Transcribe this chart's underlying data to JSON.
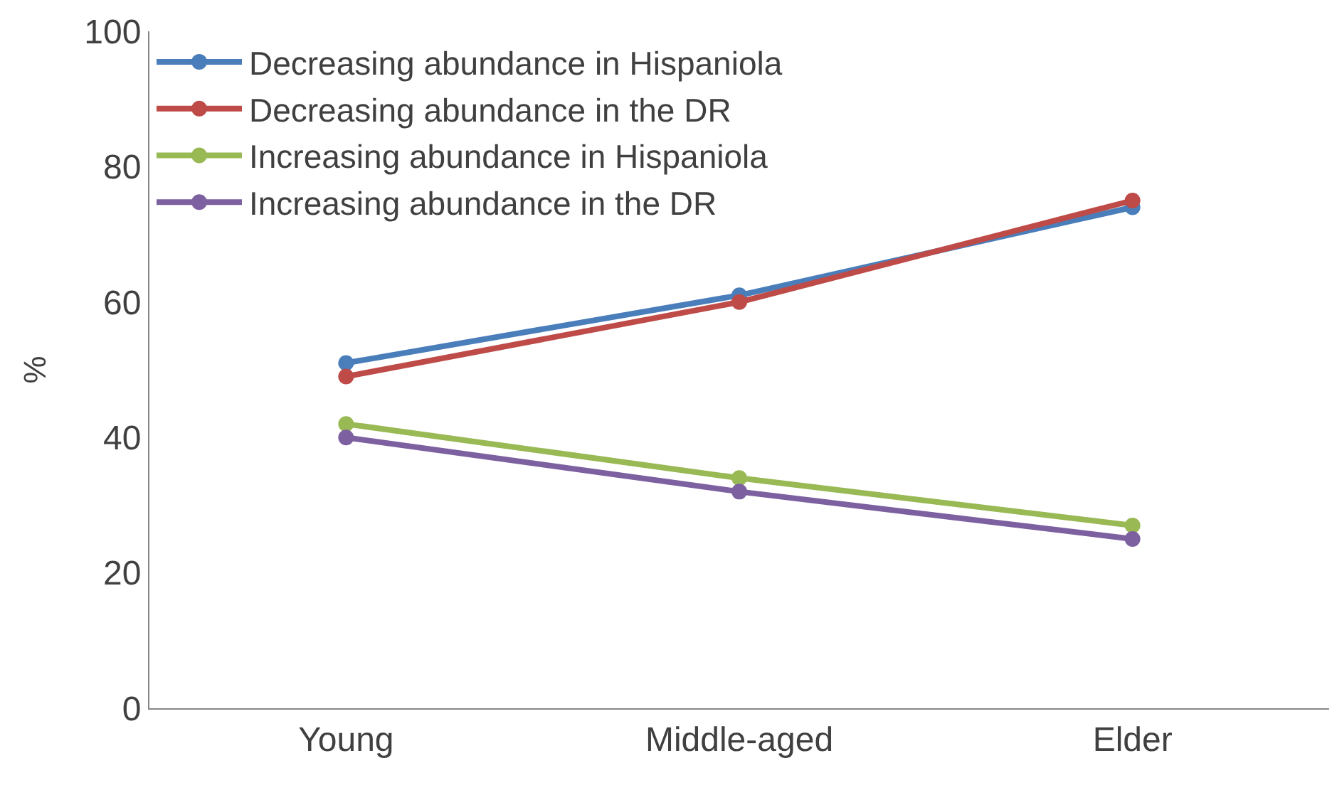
{
  "chart_data": {
    "type": "line",
    "ylabel": "%",
    "categories": [
      "Young",
      "Middle-aged",
      "Elder"
    ],
    "series": [
      {
        "name": "Decreasing abundance in Hispaniola",
        "color": "#4a7ebb",
        "values": [
          51,
          61,
          74
        ]
      },
      {
        "name": "Decreasing abundance in the DR",
        "color": "#be4b48",
        "values": [
          49,
          60,
          75
        ]
      },
      {
        "name": "Increasing abundance in Hispaniola",
        "color": "#98b954",
        "values": [
          42,
          34,
          27
        ]
      },
      {
        "name": "Increasing abundance in the DR",
        "color": "#7d60a0",
        "values": [
          40,
          32,
          25
        ]
      }
    ],
    "ylim": [
      0,
      100
    ],
    "yticks": [
      0,
      20,
      40,
      60,
      80,
      100
    ],
    "grid": false,
    "legend": "top left",
    "marker": "circle",
    "line_style": "solid"
  }
}
